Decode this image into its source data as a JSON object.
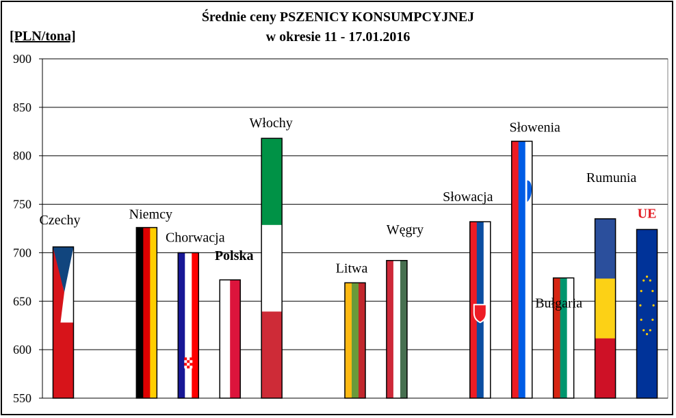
{
  "chart_data": {
    "type": "bar",
    "title": "Średnie ceny PSZENICY KONSUMPCYJNEJ",
    "subtitle": "w okresie  11 - 17.01.2016",
    "ylabel": "[PLN/tona]",
    "ylim": [
      550,
      900
    ],
    "yticks": [
      550,
      600,
      650,
      700,
      750,
      800,
      850,
      900
    ],
    "grid": true,
    "categories": [
      "Czechy",
      "",
      "Niemcy",
      "Chorwacja",
      "Polska",
      "Włochy",
      "",
      "Litwa",
      "Węgry",
      "",
      "Słowacja",
      "Słowenia",
      "Bułgaria",
      "Rumunia",
      "UE"
    ],
    "values": [
      706,
      null,
      726,
      700,
      672,
      818,
      null,
      669,
      692,
      null,
      732,
      815,
      674,
      735,
      724
    ],
    "flags": [
      "czech",
      "",
      "germany",
      "croatia",
      "poland",
      "italy",
      "",
      "lithuania",
      "hungary",
      "",
      "slovakia",
      "slovenia",
      "bulgaria",
      "romania",
      "eu"
    ],
    "highlight_colors": {
      "Polska": "#000000",
      "UE": "#e31b23"
    }
  }
}
